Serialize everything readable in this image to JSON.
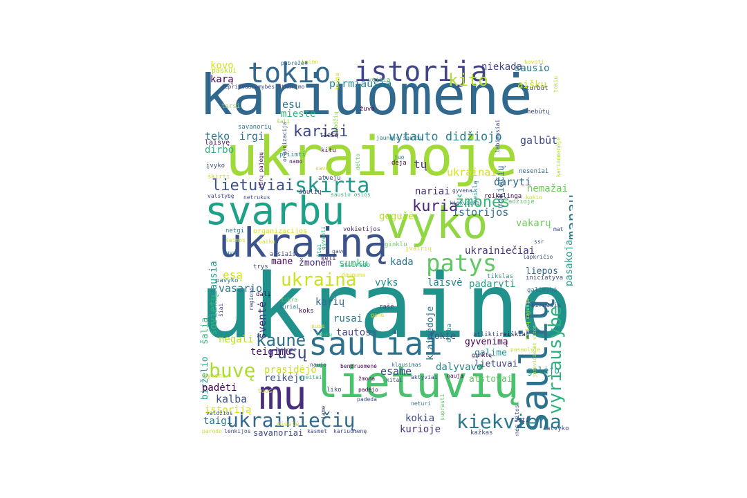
{
  "words": [
    {
      "text": "ukraino",
      "color": "#21918c"
    },
    {
      "text": "kariuomenė",
      "color": "#31688e"
    },
    {
      "text": "ukrainoje",
      "color": "#a0da39"
    },
    {
      "text": "svarbu",
      "color": "#1fa187"
    },
    {
      "text": "lietuvių",
      "color": "#4ac16d"
    },
    {
      "text": "vyko",
      "color": "#90d743"
    },
    {
      "text": "ukrainą",
      "color": "#3b528b"
    },
    {
      "text": "šaulių",
      "color": "#2c728e"
    },
    {
      "text": "šauliai",
      "color": "#2c728e"
    },
    {
      "text": "mu",
      "color": "#472d7b"
    },
    {
      "text": "istorija",
      "color": "#414487"
    },
    {
      "text": "tokio",
      "color": "#31688e"
    },
    {
      "text": "patys",
      "color": "#5ec962"
    },
    {
      "text": "ukraina",
      "color": "#cde11d"
    },
    {
      "text": "skirta",
      "color": "#1f988b"
    },
    {
      "text": "vyriausybė",
      "color": "#2db27d"
    },
    {
      "text": "kiekviena",
      "color": "#2a788e"
    },
    {
      "text": "ukrainiečių",
      "color": "#31688e"
    },
    {
      "text": "buvę",
      "color": "#aadc32"
    },
    {
      "text": "kaune",
      "color": "#2c728e"
    },
    {
      "text": "rusų",
      "color": "#3e4989"
    },
    {
      "text": "kuria",
      "color": "#482878"
    },
    {
      "text": "žmones",
      "color": "#35b779"
    },
    {
      "text": "lietuviai",
      "color": "#3b528b"
    },
    {
      "text": "kito",
      "color": "#b5de2b"
    },
    {
      "text": "kariai",
      "color": "#3e4989"
    },
    {
      "text": "manau",
      "color": "#2a788e"
    },
    {
      "text": "vytauto didžiojo",
      "color": "#26828e"
    },
    {
      "text": "ukrainai",
      "color": "#d8e219"
    },
    {
      "text": "istorijos",
      "color": "#2c728e"
    },
    {
      "text": "ukrainiečiai",
      "color": "#46327e"
    },
    {
      "text": "vakarų",
      "color": "#6ccd5a"
    },
    {
      "text": "pasakoja",
      "color": "#1f9e89"
    },
    {
      "text": "gegužė",
      "color": "#b5de2b"
    },
    {
      "text": "nariai",
      "color": "#482878"
    },
    {
      "text": "daryti",
      "color": "#31688e"
    },
    {
      "text": "nemažai",
      "color": "#6ccd5a"
    },
    {
      "text": "tų",
      "color": "#472d7b"
    },
    {
      "text": "vokiečių",
      "color": "#31688e"
    },
    {
      "text": "galbūt",
      "color": "#3e4989"
    },
    {
      "text": "niekada",
      "color": "#414487"
    },
    {
      "text": "sausio",
      "color": "#2a788e"
    },
    {
      "text": "aišku",
      "color": "#cde11d"
    },
    {
      "text": "karą",
      "color": "#440154"
    },
    {
      "text": "kovo",
      "color": "#d8e219"
    },
    {
      "text": "pirmiausia",
      "color": "#26828e"
    },
    {
      "text": "esu",
      "color": "#2c728e"
    },
    {
      "text": "mieste",
      "color": "#2db27d"
    },
    {
      "text": "irgi",
      "color": "#2a788e"
    },
    {
      "text": "teko",
      "color": "#2a788e"
    },
    {
      "text": "dirbo",
      "color": "#2db27d"
    },
    {
      "text": "svarbiausia",
      "color": "#1f9e89"
    },
    {
      "text": "sovietų",
      "color": "#35b779"
    },
    {
      "text": "vasario",
      "color": "#2a788e"
    },
    {
      "text": "esą",
      "color": "#cde11d"
    },
    {
      "text": "šventė",
      "color": "#472d7b"
    },
    {
      "text": "žmonėm",
      "color": "#472d7b"
    },
    {
      "text": "mane",
      "color": "#440154"
    },
    {
      "text": "sunku",
      "color": "#35b779"
    },
    {
      "text": "kada",
      "color": "#2c728e"
    },
    {
      "text": "vyks",
      "color": "#21918c"
    },
    {
      "text": "laisvė",
      "color": "#26828e"
    },
    {
      "text": "padaryti",
      "color": "#1f9e89"
    },
    {
      "text": "liepos",
      "color": "#31688e"
    },
    {
      "text": "karių",
      "color": "#31688e"
    },
    {
      "text": "rusai",
      "color": "#2a788e"
    },
    {
      "text": "tautos",
      "color": "#414487"
    },
    {
      "text": "klaipėdoje",
      "color": "#2c728e"
    },
    {
      "text": "tokie",
      "color": "#3b528b"
    },
    {
      "text": "gyvenimą",
      "color": "#440154"
    },
    {
      "text": "galime",
      "color": "#21918c"
    },
    {
      "text": "lietuvai",
      "color": "#3e4989"
    },
    {
      "text": "dalyvavo",
      "color": "#26828e"
    },
    {
      "text": "galėjo",
      "color": "#21918c"
    },
    {
      "text": "atstovai",
      "color": "#5ec962"
    },
    {
      "text": "esame",
      "color": "#3e4989"
    },
    {
      "text": "prasidėjo",
      "color": "#cde11d"
    },
    {
      "text": "reikėjo",
      "color": "#3b528b"
    },
    {
      "text": "teigimu",
      "color": "#471063"
    },
    {
      "text": "negali",
      "color": "#b5de2b"
    },
    {
      "text": "birželio",
      "color": "#1f9e89"
    },
    {
      "text": "šalia",
      "color": "#35b779"
    },
    {
      "text": "padėti",
      "color": "#440154"
    },
    {
      "text": "kalba",
      "color": "#3b528b"
    },
    {
      "text": "istoriją",
      "color": "#d8e219"
    },
    {
      "text": "taigi",
      "color": "#2c728e"
    },
    {
      "text": "savanoriai",
      "color": "#3e4989"
    },
    {
      "text": "kokia",
      "color": "#3e4989"
    },
    {
      "text": "kurioje",
      "color": "#46327e"
    },
    {
      "text": "kaimo",
      "color": "#d8e219"
    },
    {
      "text": "paskui",
      "color": "#b5de2b"
    },
    {
      "text": "pabrėžė",
      "color": "#31688e"
    },
    {
      "text": "nepriklausomybės atkūrimo",
      "color": "#3e4989"
    },
    {
      "text": "knyga",
      "color": "#d8e219"
    },
    {
      "text": "veikia",
      "color": "#5ec962"
    },
    {
      "text": "kovoti",
      "color": "#d8e219"
    },
    {
      "text": "tokiu",
      "color": "#b5de2b"
    },
    {
      "text": "turbūt",
      "color": "#3e4989"
    },
    {
      "text": "tarsi",
      "color": "#a0da39"
    },
    {
      "text": "organizacija",
      "color": "#3e4989"
    },
    {
      "text": "pradžių",
      "color": "#90d743"
    },
    {
      "text": "labiausiai",
      "color": "#3e4989"
    },
    {
      "text": "nebūtų",
      "color": "#3e4989"
    },
    {
      "text": "savanorių",
      "color": "#2a788e"
    },
    {
      "text": "šalį",
      "color": "#a0da39"
    },
    {
      "text": "žuvo",
      "color": "#440154"
    },
    {
      "text": "tiesų",
      "color": "#440154"
    },
    {
      "text": "jaunųjų šaulių",
      "color": "#2c728e"
    },
    {
      "text": "laisvę",
      "color": "#471063"
    },
    {
      "text": "jūrų pajėgų",
      "color": "#440154"
    },
    {
      "text": "priimti",
      "color": "#21918c"
    },
    {
      "text": "kitu",
      "color": "#440154"
    },
    {
      "text": "namo",
      "color": "#471063"
    },
    {
      "text": "įvyko",
      "color": "#3b528b"
    },
    {
      "text": "save",
      "color": "#cde11d"
    },
    {
      "text": "dėlto",
      "color": "#5ec962"
    },
    {
      "text": "juo",
      "color": "#2c728e"
    },
    {
      "text": "deja",
      "color": "#440154"
    },
    {
      "text": "veiklą",
      "color": "#21918c"
    },
    {
      "text": "neseniai",
      "color": "#31688e"
    },
    {
      "text": "kariuomenėje",
      "color": "#b5de2b"
    },
    {
      "text": "skirti",
      "color": "#cde11d"
    },
    {
      "text": "valstybę",
      "color": "#414487"
    },
    {
      "text": "atveju",
      "color": "#3e4989"
    },
    {
      "text": "gyvena",
      "color": "#3e4989"
    },
    {
      "text": "reikalinga",
      "color": "#440154"
    },
    {
      "text": "kokio",
      "color": "#cde11d"
    },
    {
      "text": "netrukus",
      "color": "#3e4989"
    },
    {
      "text": "šaulių",
      "color": "#472d7b"
    },
    {
      "text": "sausio osios",
      "color": "#35b779"
    },
    {
      "text": "pradžioje",
      "color": "#5ec962"
    },
    {
      "text": "kiekvieną",
      "color": "#2a788e"
    },
    {
      "text": "gyventi",
      "color": "#2db27d"
    },
    {
      "text": "organizacijos",
      "color": "#d8e219"
    },
    {
      "text": "vokietijos",
      "color": "#482878"
    },
    {
      "text": "mat",
      "color": "#3e4989"
    },
    {
      "text": "netgi",
      "color": "#2a788e"
    },
    {
      "text": "štai",
      "color": "#1f9e89"
    },
    {
      "text": "šeimos",
      "color": "#cde11d"
    },
    {
      "text": "ginklu",
      "color": "#6ccd5a"
    },
    {
      "text": "ssr",
      "color": "#3b528b"
    },
    {
      "text": "vaiku",
      "color": "#cde11d"
    },
    {
      "text": "gavo",
      "color": "#3e4989"
    },
    {
      "text": "įvairių",
      "color": "#d8e219"
    },
    {
      "text": "lapkričio",
      "color": "#3e4989"
    },
    {
      "text": "buvau",
      "color": "#2c728e"
    },
    {
      "text": "aisiais",
      "color": "#3e4989"
    },
    {
      "text": "keli",
      "color": "#46327e"
    },
    {
      "text": "atsirado",
      "color": "#2db27d"
    },
    {
      "text": "trys",
      "color": "#414487"
    },
    {
      "text": "dauguma",
      "color": "#d8e219"
    },
    {
      "text": "pavyko",
      "color": "#2a788e"
    },
    {
      "text": "tikslas",
      "color": "#1f9e89"
    },
    {
      "text": "iniciatyva",
      "color": "#3e4989"
    },
    {
      "text": "regiono",
      "color": "#3e4989"
    },
    {
      "text": "dalį",
      "color": "#440154"
    },
    {
      "text": "galimybė",
      "color": "#2c728e"
    },
    {
      "text": "šiai",
      "color": "#3e4989"
    },
    {
      "text": "tikra",
      "color": "#5ec962"
    },
    {
      "text": "šaulių sąjunga",
      "color": "#d8e219"
    },
    {
      "text": "jurevičienės vitos",
      "color": "#aadc32"
    },
    {
      "text": "pirmasis",
      "color": "#3e4989"
    },
    {
      "text": "kuriai",
      "color": "#2c728e"
    },
    {
      "text": "rašė",
      "color": "#3e4989"
    },
    {
      "text": "koks",
      "color": "#440154"
    },
    {
      "text": "gana",
      "color": "#d8e219"
    },
    {
      "text": "puse",
      "color": "#cde11d"
    },
    {
      "text": "lenkų",
      "color": "#35b779"
    },
    {
      "text": "dirba",
      "color": "#26828e"
    },
    {
      "text": "atlikti",
      "color": "#3e4989"
    },
    {
      "text": "reiškia",
      "color": "#440154"
    },
    {
      "text": "ginklų",
      "color": "#440154"
    },
    {
      "text": "pasaulyje",
      "color": "#cde11d"
    },
    {
      "text": "matome",
      "color": "#3e4989"
    },
    {
      "text": "naujo",
      "color": "#3e4989"
    },
    {
      "text": "bendruomenė",
      "color": "#440154"
    },
    {
      "text": "klausimas",
      "color": "#2a788e"
    },
    {
      "text": "žmona",
      "color": "#440154"
    },
    {
      "text": "kitai",
      "color": "#3e4989"
    },
    {
      "text": "aktyviai",
      "color": "#3e4989"
    },
    {
      "text": "nauja",
      "color": "#440154"
    },
    {
      "text": "gyveno",
      "color": "#cde11d"
    },
    {
      "text": "greitai",
      "color": "#2db27d"
    },
    {
      "text": "tuos",
      "color": "#cde11d"
    },
    {
      "text": "liko",
      "color": "#3e4989"
    },
    {
      "text": "padėjo",
      "color": "#440154"
    },
    {
      "text": "suprasti",
      "color": "#5ec962"
    },
    {
      "text": "jame",
      "color": "#3e4989"
    },
    {
      "text": "padeda",
      "color": "#3e4989"
    },
    {
      "text": "neturi",
      "color": "#2c728e"
    },
    {
      "text": "rasti",
      "color": "#3e4989"
    },
    {
      "text": "valdžios",
      "color": "#3e4989"
    },
    {
      "text": "didelė",
      "color": "#d8e219"
    },
    {
      "text": "jurevičienės vitos",
      "color": "#3e4989"
    },
    {
      "text": "parodo",
      "color": "#cde11d"
    },
    {
      "text": "lenkijos",
      "color": "#3e4989"
    },
    {
      "text": "kasmet",
      "color": "#3e4989"
    },
    {
      "text": "kariuomenę",
      "color": "#3e4989"
    },
    {
      "text": "kažkas",
      "color": "#3e4989"
    },
    {
      "text": "atvyko",
      "color": "#3e4989"
    }
  ]
}
